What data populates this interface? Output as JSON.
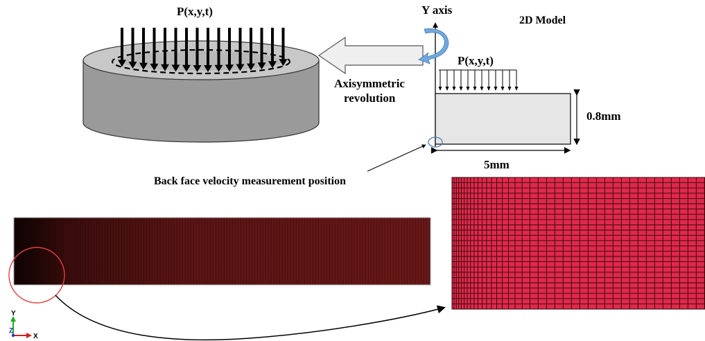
{
  "labels": {
    "load_top": "P(x,y,t)",
    "y_axis": "Y axis",
    "model_title": "2D Model",
    "load_model": "P(x,y,t)",
    "revolution_line1": "Axisymmetric",
    "revolution_line2": "revolution",
    "thickness": "0.8mm",
    "width": "5mm",
    "measurement": "Back face velocity measurement position"
  },
  "triad": {
    "y": "Y",
    "z": "Z",
    "x": "X"
  },
  "colors": {
    "cylinder_side": "#9a9a9a",
    "cylinder_top": "#c8c8c8",
    "arrow_fill": "#efefef",
    "rotation_arrow": "#6fa8dc",
    "plate_fill": "#e6e6e6",
    "mesh_fill": "#e0284a",
    "mesh_dark": "#1a0606",
    "mesh_mid": "#5c1414",
    "mesh_line": "#2a0a0a",
    "highlight_circle": "#e04040",
    "measure_circle": "#4a7bb5",
    "axis_y": "#22aa22",
    "axis_x": "#cc2222",
    "axis_z": "#2233cc"
  }
}
